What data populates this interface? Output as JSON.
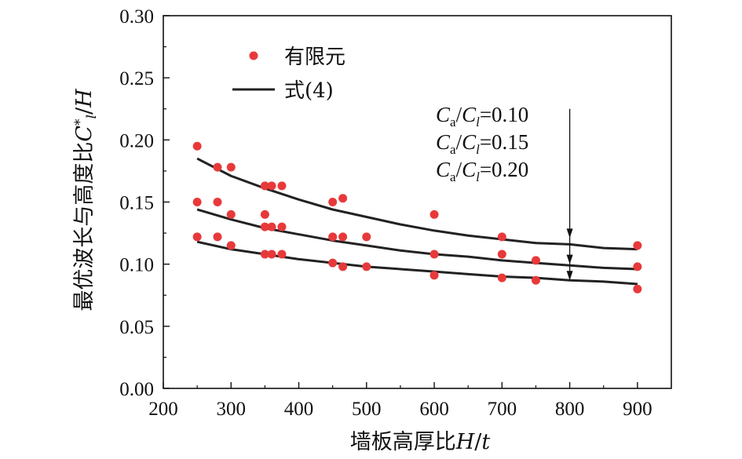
{
  "chart_data": {
    "type": "scatter",
    "xlim": [
      200,
      950
    ],
    "ylim": [
      0,
      0.3
    ],
    "xticks": [
      200,
      300,
      400,
      500,
      600,
      700,
      800,
      900
    ],
    "yticks": [
      0.0,
      0.05,
      0.1,
      0.15,
      0.2,
      0.25,
      0.3
    ],
    "xtick_labels": [
      "200",
      "300",
      "400",
      "500",
      "600",
      "700",
      "800",
      "900"
    ],
    "ytick_labels": [
      "0.00",
      "0.05",
      "0.10",
      "0.15",
      "0.20",
      "0.25",
      "0.30"
    ],
    "xlabel": {
      "prefix": "墙板高厚比",
      "var1": "H",
      "slash": "/",
      "var2": "t"
    },
    "ylabel": {
      "prefix": "最优波长与高度比",
      "var1": "C",
      "sup": "*",
      "sub": "l",
      "slash": "/",
      "var2": "H"
    },
    "legend": {
      "position": "top-left",
      "scatter_label": "有限元",
      "line_label": "式(4)"
    },
    "marker_color": "#e8393a",
    "line_color": "#222222",
    "series": [
      {
        "name": "有限元",
        "kind": "scatter",
        "points": [
          [
            250,
            0.195
          ],
          [
            280,
            0.178
          ],
          [
            300,
            0.178
          ],
          [
            350,
            0.163
          ],
          [
            360,
            0.163
          ],
          [
            375,
            0.163
          ],
          [
            450,
            0.15
          ],
          [
            465,
            0.153
          ],
          [
            600,
            0.14
          ],
          [
            700,
            0.122
          ],
          [
            900,
            0.115
          ],
          [
            250,
            0.15
          ],
          [
            280,
            0.15
          ],
          [
            300,
            0.14
          ],
          [
            350,
            0.14
          ],
          [
            350,
            0.13
          ],
          [
            360,
            0.13
          ],
          [
            375,
            0.13
          ],
          [
            450,
            0.122
          ],
          [
            465,
            0.122
          ],
          [
            500,
            0.122
          ],
          [
            600,
            0.108
          ],
          [
            700,
            0.108
          ],
          [
            750,
            0.103
          ],
          [
            900,
            0.098
          ],
          [
            250,
            0.122
          ],
          [
            280,
            0.122
          ],
          [
            300,
            0.115
          ],
          [
            350,
            0.108
          ],
          [
            360,
            0.108
          ],
          [
            375,
            0.108
          ],
          [
            450,
            0.101
          ],
          [
            465,
            0.098
          ],
          [
            500,
            0.098
          ],
          [
            600,
            0.091
          ],
          [
            700,
            0.089
          ],
          [
            750,
            0.087
          ],
          [
            900,
            0.08
          ]
        ]
      },
      {
        "name": "式(4)",
        "kind": "line",
        "x": [
          250,
          300,
          350,
          400,
          450,
          500,
          550,
          600,
          650,
          700,
          750,
          800,
          850,
          900
        ],
        "y": [
          0.185,
          0.171,
          0.161,
          0.152,
          0.144,
          0.138,
          0.132,
          0.127,
          0.123,
          0.12,
          0.117,
          0.116,
          0.113,
          0.112
        ]
      },
      {
        "name": "式(4)",
        "kind": "line",
        "x": [
          250,
          300,
          350,
          400,
          450,
          500,
          550,
          600,
          650,
          700,
          750,
          800,
          850,
          900
        ],
        "y": [
          0.144,
          0.136,
          0.129,
          0.124,
          0.119,
          0.115,
          0.111,
          0.108,
          0.106,
          0.103,
          0.101,
          0.099,
          0.097,
          0.096
        ]
      },
      {
        "name": "式(4)",
        "kind": "line",
        "x": [
          250,
          300,
          350,
          400,
          450,
          500,
          550,
          600,
          650,
          700,
          750,
          800,
          850,
          900
        ],
        "y": [
          0.118,
          0.112,
          0.108,
          0.104,
          0.101,
          0.098,
          0.096,
          0.094,
          0.092,
          0.09,
          0.089,
          0.087,
          0.086,
          0.084
        ]
      }
    ],
    "annotation": {
      "lines": [
        {
          "C1": "C",
          "s1": "a",
          "slash": "/",
          "C2": "C",
          "s2": "l",
          "val": "=0.10"
        },
        {
          "C1": "C",
          "s1": "a",
          "slash": "/",
          "C2": "C",
          "s2": "l",
          "val": "=0.15"
        },
        {
          "C1": "C",
          "s1": "a",
          "slash": "/",
          "C2": "C",
          "s2": "l",
          "val": "=0.20"
        }
      ],
      "arrow_x": 800,
      "arrow_top": 0.225,
      "arrow_heads": [
        0.121,
        0.1,
        0.087
      ]
    }
  }
}
